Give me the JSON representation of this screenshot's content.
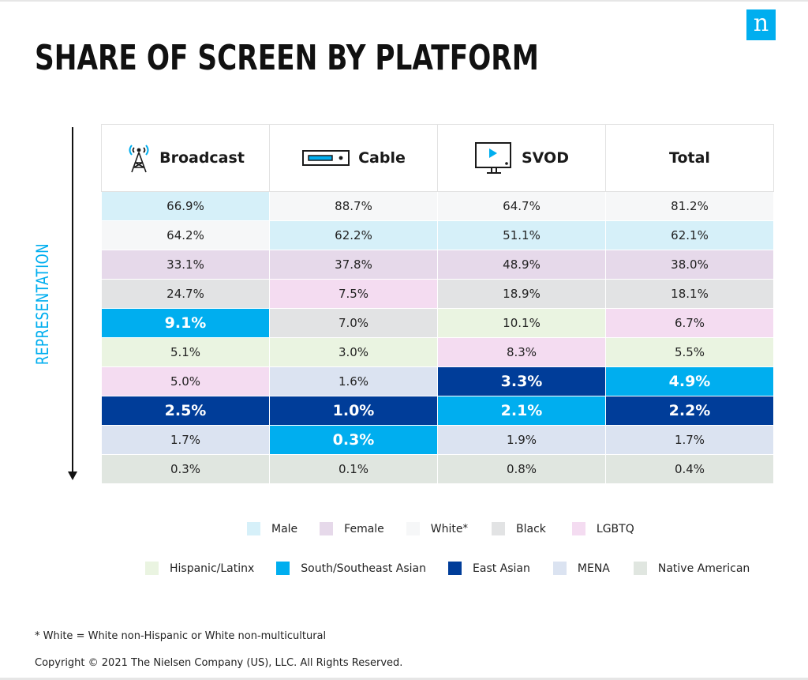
{
  "logo_letter": "n",
  "title": "SHARE OF SCREEN BY PLATFORM",
  "axis_label": "REPRESENTATION",
  "colors": {
    "male": "#d6f0f9",
    "female": "#e6d9ea",
    "white": "#f6f7f8",
    "black": "#e2e3e4",
    "lgbtq": "#f4dcf1",
    "hispanic": "#eaf4e1",
    "south_asian": "#00aeef",
    "east_asian": "#003d99",
    "mena": "#dbe3f1",
    "native": "#e0e6e0"
  },
  "chart_data": {
    "type": "table",
    "title": "SHARE OF SCREEN BY PLATFORM",
    "ylabel": "REPRESENTATION",
    "columns": [
      {
        "label": "Broadcast",
        "icon": "broadcast-tower-icon"
      },
      {
        "label": "Cable",
        "icon": "cable-box-icon"
      },
      {
        "label": "SVOD",
        "icon": "svod-monitor-icon"
      },
      {
        "label": "Total",
        "icon": ""
      }
    ],
    "rows": [
      [
        {
          "value": "66.9%",
          "group": "male"
        },
        {
          "value": "88.7%",
          "group": "white"
        },
        {
          "value": "64.7%",
          "group": "white"
        },
        {
          "value": "81.2%",
          "group": "white"
        }
      ],
      [
        {
          "value": "64.2%",
          "group": "white"
        },
        {
          "value": "62.2%",
          "group": "male"
        },
        {
          "value": "51.1%",
          "group": "male"
        },
        {
          "value": "62.1%",
          "group": "male"
        }
      ],
      [
        {
          "value": "33.1%",
          "group": "female"
        },
        {
          "value": "37.8%",
          "group": "female"
        },
        {
          "value": "48.9%",
          "group": "female"
        },
        {
          "value": "38.0%",
          "group": "female"
        }
      ],
      [
        {
          "value": "24.7%",
          "group": "black"
        },
        {
          "value": "7.5%",
          "group": "lgbtq"
        },
        {
          "value": "18.9%",
          "group": "black"
        },
        {
          "value": "18.1%",
          "group": "black"
        }
      ],
      [
        {
          "value": "9.1%",
          "group": "south_asian"
        },
        {
          "value": "7.0%",
          "group": "black"
        },
        {
          "value": "10.1%",
          "group": "hispanic"
        },
        {
          "value": "6.7%",
          "group": "lgbtq"
        }
      ],
      [
        {
          "value": "5.1%",
          "group": "hispanic"
        },
        {
          "value": "3.0%",
          "group": "hispanic"
        },
        {
          "value": "8.3%",
          "group": "lgbtq"
        },
        {
          "value": "5.5%",
          "group": "hispanic"
        }
      ],
      [
        {
          "value": "5.0%",
          "group": "lgbtq"
        },
        {
          "value": "1.6%",
          "group": "mena"
        },
        {
          "value": "3.3%",
          "group": "east_asian"
        },
        {
          "value": "4.9%",
          "group": "south_asian"
        }
      ],
      [
        {
          "value": "2.5%",
          "group": "east_asian"
        },
        {
          "value": "1.0%",
          "group": "east_asian"
        },
        {
          "value": "2.1%",
          "group": "south_asian"
        },
        {
          "value": "2.2%",
          "group": "east_asian"
        }
      ],
      [
        {
          "value": "1.7%",
          "group": "mena"
        },
        {
          "value": "0.3%",
          "group": "south_asian"
        },
        {
          "value": "1.9%",
          "group": "mena"
        },
        {
          "value": "1.7%",
          "group": "mena"
        }
      ],
      [
        {
          "value": "0.3%",
          "group": "native"
        },
        {
          "value": "0.1%",
          "group": "native"
        },
        {
          "value": "0.8%",
          "group": "native"
        },
        {
          "value": "0.4%",
          "group": "native"
        }
      ]
    ],
    "legend": [
      [
        {
          "label": "Male",
          "group": "male"
        },
        {
          "label": "Female",
          "group": "female"
        },
        {
          "label": "White",
          "sup": "*",
          "group": "white"
        },
        {
          "label": "Black",
          "group": "black"
        },
        {
          "label": "LGBTQ",
          "group": "lgbtq"
        }
      ],
      [
        {
          "label": "Hispanic/Latinx",
          "group": "hispanic"
        },
        {
          "label": "South/Southeast Asian",
          "group": "south_asian"
        },
        {
          "label": "East Asian",
          "group": "east_asian"
        },
        {
          "label": "MENA",
          "group": "mena"
        },
        {
          "label": "Native American",
          "group": "native"
        }
      ]
    ],
    "legend_placement": "bottom"
  },
  "footnote": "* White = White non-Hispanic or White non-multicultural",
  "copyright": "Copyright © 2021 The Nielsen Company (US), LLC. All Rights Reserved."
}
